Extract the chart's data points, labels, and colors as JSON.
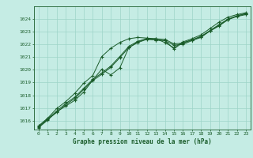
{
  "title": "Graphe pression niveau de la mer (hPa)",
  "xlabel_ticks": [
    0,
    1,
    2,
    3,
    4,
    5,
    6,
    7,
    8,
    9,
    10,
    11,
    12,
    13,
    14,
    15,
    16,
    17,
    18,
    19,
    20,
    21,
    22,
    23
  ],
  "ylim": [
    1015.3,
    1025.0
  ],
  "xlim": [
    -0.5,
    23.5
  ],
  "yticks": [
    1016,
    1017,
    1018,
    1019,
    1020,
    1021,
    1022,
    1023,
    1024
  ],
  "bg_color": "#c5ece4",
  "grid_color": "#9dd4c8",
  "line_color": "#1a5c2a",
  "line1": [
    1015.55,
    1016.15,
    1016.75,
    1017.35,
    1017.85,
    1018.55,
    1019.25,
    1019.75,
    1020.3,
    1021.05,
    1021.85,
    1022.25,
    1022.45,
    1022.45,
    1022.4,
    1022.05,
    1022.1,
    1022.35,
    1022.6,
    1023.1,
    1023.55,
    1024.0,
    1024.25,
    1024.4
  ],
  "line2": [
    1015.45,
    1016.05,
    1016.7,
    1017.15,
    1017.6,
    1018.25,
    1019.2,
    1020.05,
    1019.6,
    1020.15,
    1021.75,
    1022.2,
    1022.45,
    1022.35,
    1022.3,
    1021.65,
    1022.15,
    1022.35,
    1022.65,
    1023.05,
    1023.45,
    1023.95,
    1024.25,
    1024.45
  ],
  "line3": [
    1015.6,
    1016.2,
    1016.95,
    1017.5,
    1018.15,
    1018.95,
    1019.55,
    1021.05,
    1021.7,
    1022.15,
    1022.45,
    1022.55,
    1022.5,
    1022.45,
    1022.15,
    1021.75,
    1022.2,
    1022.45,
    1022.75,
    1023.25,
    1023.75,
    1024.15,
    1024.35,
    1024.5
  ],
  "line4": [
    1015.5,
    1016.1,
    1016.65,
    1017.25,
    1017.75,
    1018.45,
    1019.15,
    1019.65,
    1020.2,
    1020.95,
    1021.75,
    1022.15,
    1022.4,
    1022.35,
    1022.3,
    1021.95,
    1022.0,
    1022.3,
    1022.55,
    1023.05,
    1023.5,
    1023.95,
    1024.2,
    1024.35
  ]
}
